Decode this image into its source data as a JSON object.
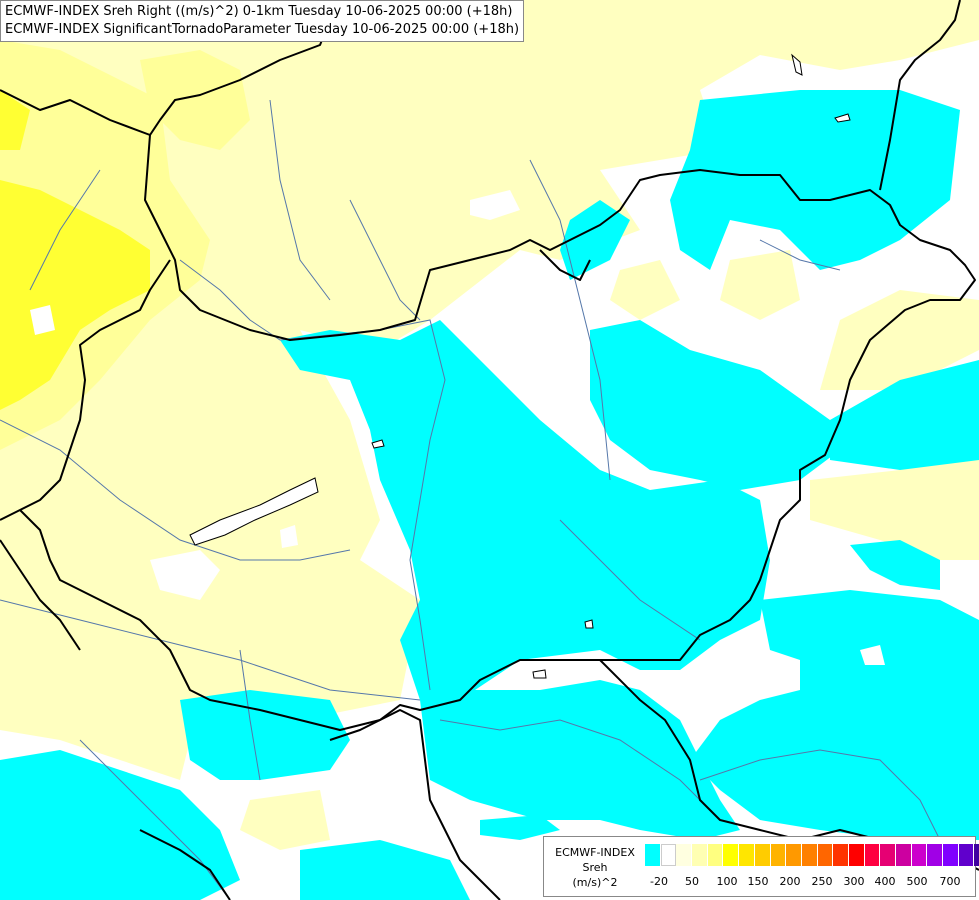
{
  "title": {
    "line1": "ECMWF-INDEX Sreh Right ((m/s)^2) 0-1km Tuesday 10-06-2025 00:00 (+18h)",
    "line2": "ECMWF-INDEX SignificantTornadoParameter Tuesday 10-06-2025 00:00 (+18h)"
  },
  "legend": {
    "title_line1": "ECMWF-INDEX",
    "title_line2": "Sreh",
    "title_line3": "(m/s)^2",
    "colors": [
      "#00ffff",
      "#ffffff",
      "#ffffe0",
      "#ffffb3",
      "#ffff80",
      "#ffff00",
      "#ffe600",
      "#ffcc00",
      "#ffb300",
      "#ff9900",
      "#ff8000",
      "#ff6600",
      "#ff3300",
      "#ff0000",
      "#ff0040",
      "#e60073",
      "#cc00a0",
      "#cc00cc",
      "#a000e6",
      "#8000ff",
      "#6000cc",
      "#4000a0",
      "#000080"
    ],
    "labels": [
      "-20",
      "50",
      "100",
      "150",
      "200",
      "250",
      "300",
      "400",
      "500",
      "700"
    ]
  },
  "map_colors": {
    "background": "#ffffff",
    "cyan": "#00ffff",
    "pale_yellow": "#ffffc0",
    "light_yellow": "#ffff99",
    "yellow": "#ffff33",
    "borders": "#000000",
    "rivers": "#5577aa"
  }
}
